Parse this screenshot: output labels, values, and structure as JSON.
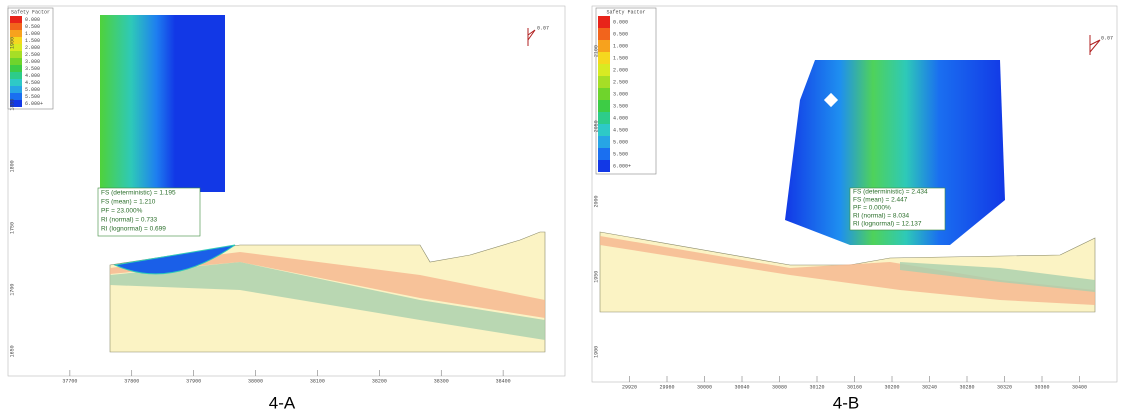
{
  "legend_colors": [
    "#e8241a",
    "#f2641c",
    "#f7a21d",
    "#f5d81f",
    "#d8ea23",
    "#a6de26",
    "#6fd42c",
    "#3dcc45",
    "#2dcc8a",
    "#2ec9c7",
    "#27a5e5",
    "#1a6ff0",
    "#1238e6"
  ],
  "panels": [
    {
      "legend": {
        "title": "Safety Factor",
        "levels": [
          "0.000",
          "0.500",
          "1.000",
          "1.500",
          "2.000",
          "2.500",
          "3.000",
          "3.500",
          "4.000",
          "4.500",
          "5.000",
          "5.500",
          "6.000+"
        ]
      },
      "info": [
        "FS (deterministic) = 1.195",
        "FS (mean) = 1.210",
        "PF = 23.000%",
        "RI (normal) = 0.733",
        "RI (lognormal) = 0.699"
      ],
      "marker_label": "0.07",
      "x_ticks": [
        "37700",
        "37800",
        "37900",
        "38000",
        "38100",
        "38200",
        "38300",
        "38400"
      ],
      "y_ticks": [
        "1900",
        "1850",
        "1800",
        "1750",
        "1700",
        "1650"
      ],
      "caption": "4-A"
    },
    {
      "legend": {
        "title": "Safety Factor",
        "levels": [
          "0.000",
          "0.500",
          "1.000",
          "1.500",
          "2.000",
          "2.500",
          "3.000",
          "3.500",
          "4.000",
          "4.500",
          "5.000",
          "5.500",
          "6.000+"
        ]
      },
      "info": [
        "FS (deterministic) = 2.434",
        "FS (mean) = 2.447",
        "PF = 0.000%",
        "RI (normal) = 8.034",
        "RI (lognormal) = 12.137"
      ],
      "marker_label": "0.07",
      "x_ticks": [
        "29920",
        "29960",
        "30000",
        "30040",
        "30080",
        "30120",
        "30160",
        "30200",
        "30240",
        "30280",
        "30320",
        "30360",
        "30400"
      ],
      "y_ticks": [
        "2100",
        "2050",
        "2000",
        "1950",
        "1900"
      ],
      "caption": "4-B"
    }
  ]
}
